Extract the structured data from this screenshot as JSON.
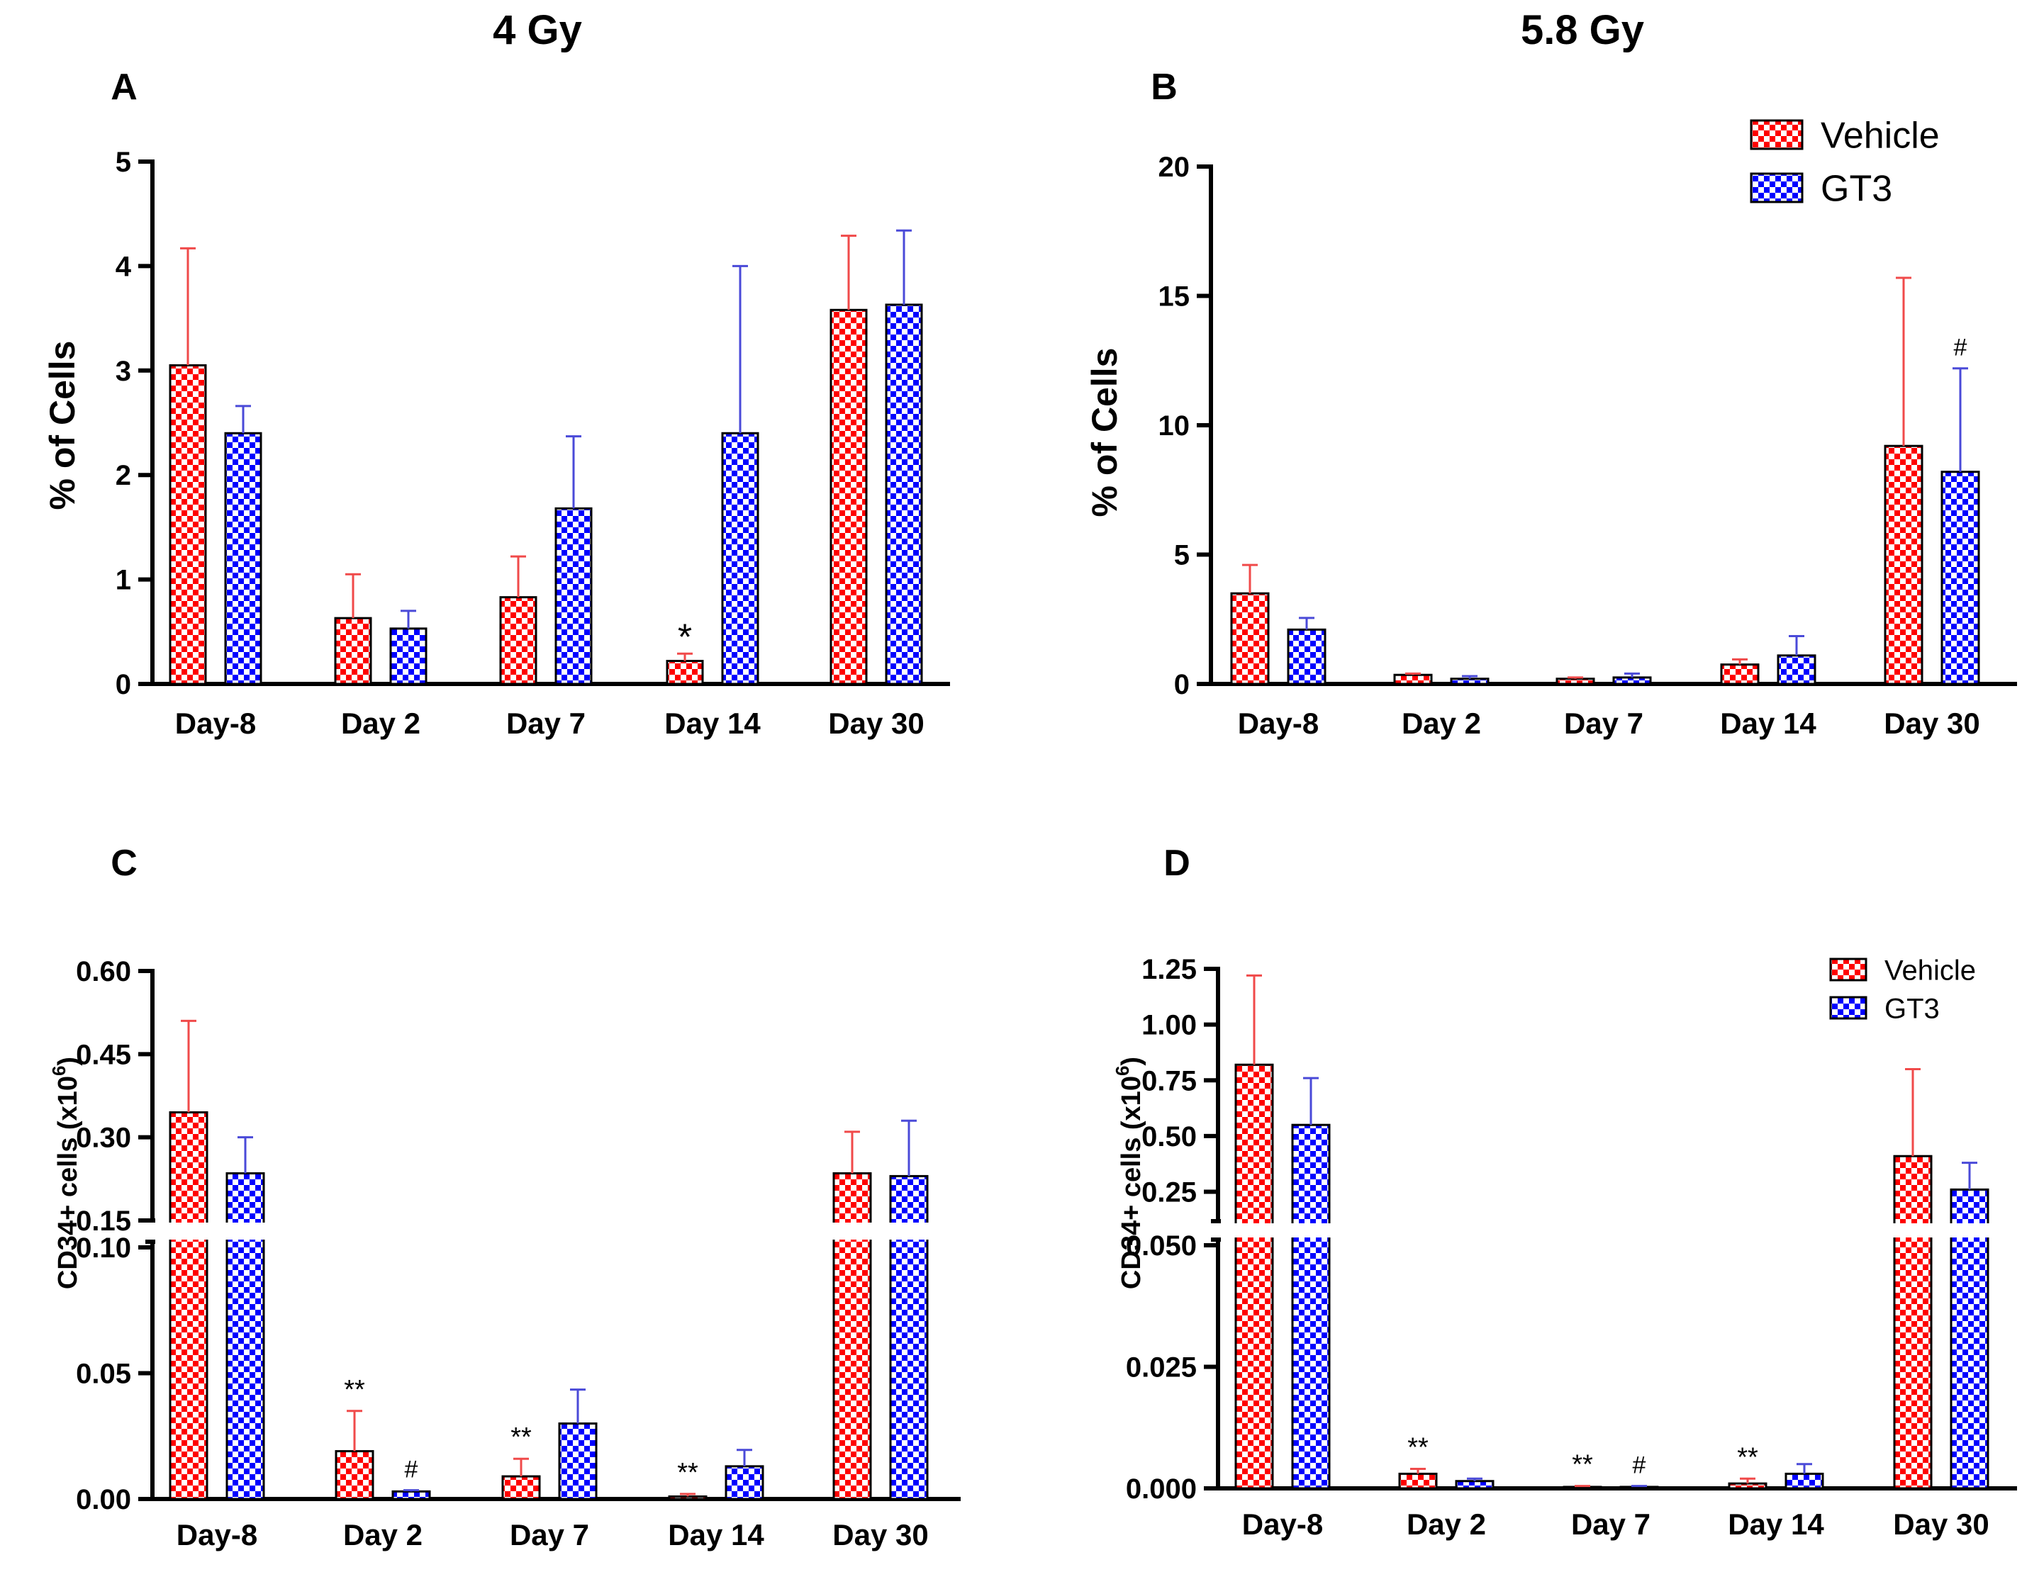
{
  "headers": {
    "left": "4 Gy",
    "right": "5.8 Gy"
  },
  "legend": {
    "vehicle": "Vehicle",
    "gt3": "GT3"
  },
  "colors": {
    "vehicle": "#ff0000",
    "gt3": "#0000ff",
    "vehicle_err": "#f04a4a",
    "gt3_err": "#4a4ad8",
    "axis": "#000000"
  },
  "chart_data": [
    {
      "panel": "A",
      "type": "bar",
      "title": "4 Gy",
      "ylabel": "% of Cells",
      "categories": [
        "Day-8",
        "Day 2",
        "Day 7",
        "Day 14",
        "Day 30"
      ],
      "ylim": [
        0,
        5
      ],
      "yticks": [
        "0",
        "1",
        "2",
        "3",
        "4",
        "5"
      ],
      "series": [
        {
          "name": "Vehicle",
          "values": [
            3.05,
            0.63,
            0.83,
            0.22,
            3.58
          ],
          "errors": [
            1.12,
            0.42,
            0.39,
            0.07,
            0.71
          ]
        },
        {
          "name": "GT3",
          "values": [
            2.4,
            0.53,
            1.68,
            2.4,
            3.63
          ],
          "errors": [
            0.26,
            0.17,
            0.69,
            1.6,
            0.71
          ]
        }
      ],
      "annotations": [
        {
          "series": "Vehicle",
          "category": "Day 14",
          "text": "*"
        }
      ]
    },
    {
      "panel": "B",
      "type": "bar",
      "title": "5.8 Gy",
      "ylabel": "% of Cells",
      "categories": [
        "Day-8",
        "Day 2",
        "Day 7",
        "Day 14",
        "Day 30"
      ],
      "ylim": [
        0,
        20
      ],
      "yticks": [
        "0",
        "5",
        "10",
        "15",
        "20"
      ],
      "legend": "top-right",
      "series": [
        {
          "name": "Vehicle",
          "values": [
            3.5,
            0.35,
            0.2,
            0.75,
            9.2
          ],
          "errors": [
            1.1,
            0.05,
            0.05,
            0.2,
            6.5
          ]
        },
        {
          "name": "GT3",
          "values": [
            2.1,
            0.2,
            0.25,
            1.1,
            8.2
          ],
          "errors": [
            0.45,
            0.1,
            0.15,
            0.75,
            4.0
          ]
        }
      ],
      "annotations": [
        {
          "series": "GT3",
          "category": "Day 30",
          "text": "#"
        }
      ]
    },
    {
      "panel": "C",
      "type": "bar",
      "title": "",
      "ylabel": "CD34+ cells (x10",
      "ylabel_sup": "6",
      "ylabel_end": ")",
      "categories": [
        "Day-8",
        "Day 2",
        "Day 7",
        "Day 14",
        "Day 30"
      ],
      "ylim_lower": [
        0,
        0.1
      ],
      "ylim_upper": [
        0.15,
        0.6
      ],
      "yticks_lower": [
        "0.00",
        "0.05",
        "0.10"
      ],
      "yticks_upper": [
        "0.15",
        "0.30",
        "0.45",
        "0.60"
      ],
      "series": [
        {
          "name": "Vehicle",
          "values": [
            0.345,
            0.019,
            0.009,
            0.001,
            0.235
          ],
          "errors": [
            0.165,
            0.016,
            0.007,
            0.001,
            0.075
          ]
        },
        {
          "name": "GT3",
          "values": [
            0.235,
            0.003,
            0.03,
            0.013,
            0.23
          ],
          "errors": [
            0.065,
            0.0005,
            0.0135,
            0.0065,
            0.1
          ]
        }
      ],
      "annotations": [
        {
          "series": "Vehicle",
          "category": "Day 2",
          "text": "**"
        },
        {
          "series": "GT3",
          "category": "Day 2",
          "text": "#"
        },
        {
          "series": "Vehicle",
          "category": "Day 7",
          "text": "**"
        },
        {
          "series": "Vehicle",
          "category": "Day 14",
          "text": "**"
        }
      ]
    },
    {
      "panel": "D",
      "type": "bar",
      "title": "",
      "ylabel": "CD34+ cells (x10",
      "ylabel_sup": "6",
      "ylabel_end": ")",
      "categories": [
        "Day-8",
        "Day 2",
        "Day 7",
        "Day 14",
        "Day 30"
      ],
      "ylim_lower": [
        0,
        0.05
      ],
      "ylim_upper": [
        0.15,
        1.25
      ],
      "yticks_lower": [
        "0.000",
        "0.025",
        "0.050"
      ],
      "yticks_upper": [
        "0.25",
        "0.50",
        "0.75",
        "1.00",
        "1.25"
      ],
      "legend": "top-right",
      "series": [
        {
          "name": "Vehicle",
          "values": [
            0.82,
            0.003,
            0.0003,
            0.001,
            0.41
          ],
          "errors": [
            0.4,
            0.001,
            0.0002,
            0.001,
            0.39
          ]
        },
        {
          "name": "GT3",
          "values": [
            0.55,
            0.0015,
            0.0003,
            0.003,
            0.26
          ],
          "errors": [
            0.21,
            0.0005,
            0.0002,
            0.002,
            0.12
          ]
        }
      ],
      "annotations": [
        {
          "series": "Vehicle",
          "category": "Day 2",
          "text": "**"
        },
        {
          "series": "Vehicle",
          "category": "Day 7",
          "text": "**"
        },
        {
          "series": "GT3",
          "category": "Day 7",
          "text": "#"
        },
        {
          "series": "Vehicle",
          "category": "Day 14",
          "text": "**"
        }
      ]
    }
  ]
}
